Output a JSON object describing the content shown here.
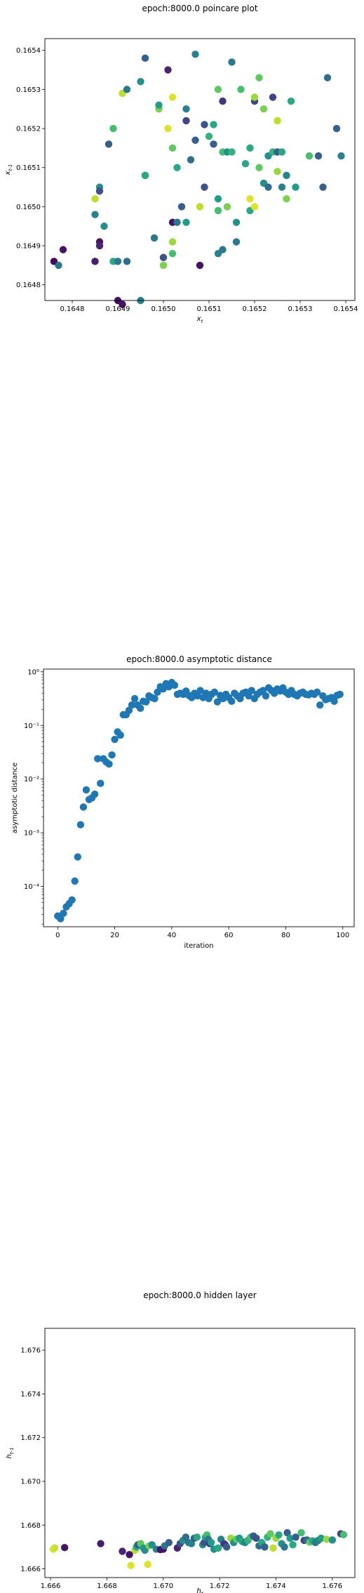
{
  "chart_data": [
    {
      "type": "scatter",
      "title": "epoch:8000.0 poincare plot",
      "xlabel": "x_t",
      "ylabel": "x_{t-1}",
      "xlim": [
        0.16474,
        0.16542
      ],
      "ylim": [
        0.16476,
        0.16543
      ],
      "xticks": [
        "0.1648",
        "0.1649",
        "0.1650",
        "0.1651",
        "0.1652",
        "0.1653",
        "0.1654"
      ],
      "yticks": [
        "0.1648",
        "0.1649",
        "0.1650",
        "0.1651",
        "0.1652",
        "0.1653",
        "0.1654"
      ],
      "colormap": "viridis",
      "points": [
        [
          0.16476,
          0.16486,
          0.02
        ],
        [
          0.16477,
          0.16485,
          0.4
        ],
        [
          0.16478,
          0.16489,
          0.05
        ],
        [
          0.16485,
          0.16486,
          0.08
        ],
        [
          0.16485,
          0.16498,
          0.45
        ],
        [
          0.16485,
          0.16502,
          0.9
        ],
        [
          0.16486,
          0.16505,
          0.5
        ],
        [
          0.16486,
          0.16504,
          0.25
        ],
        [
          0.16486,
          0.16491,
          0.05
        ],
        [
          0.16486,
          0.1649,
          0.1
        ],
        [
          0.16487,
          0.16495,
          0.5
        ],
        [
          0.16488,
          0.16516,
          0.3
        ],
        [
          0.16489,
          0.1652,
          0.7
        ],
        [
          0.16489,
          0.16486,
          0.6
        ],
        [
          0.1649,
          0.16486,
          0.4
        ],
        [
          0.1649,
          0.16476,
          0.05
        ],
        [
          0.16491,
          0.16475,
          0.05
        ],
        [
          0.16492,
          0.16486,
          0.35
        ],
        [
          0.16491,
          0.16529,
          0.9
        ],
        [
          0.16492,
          0.1653,
          0.4
        ],
        [
          0.16495,
          0.16476,
          0.45
        ],
        [
          0.16495,
          0.16532,
          0.5
        ],
        [
          0.16496,
          0.16538,
          0.3
        ],
        [
          0.16496,
          0.16508,
          0.3
        ],
        [
          0.16496,
          0.16508,
          0.6
        ],
        [
          0.16498,
          0.16492,
          0.4
        ],
        [
          0.16499,
          0.16525,
          0.8
        ],
        [
          0.16499,
          0.16526,
          0.55
        ],
        [
          0.165,
          0.16485,
          0.9
        ],
        [
          0.165,
          0.16485,
          0.8
        ],
        [
          0.165,
          0.16487,
          0.25
        ],
        [
          0.16501,
          0.1652,
          0.95
        ],
        [
          0.16501,
          0.16535,
          0.1
        ],
        [
          0.16502,
          0.16528,
          0.95
        ],
        [
          0.16502,
          0.16515,
          0.75
        ],
        [
          0.16502,
          0.16496,
          0.05
        ],
        [
          0.16502,
          0.16491,
          0.85
        ],
        [
          0.16502,
          0.16488,
          0.7
        ],
        [
          0.16503,
          0.1651,
          0.6
        ],
        [
          0.16503,
          0.16496,
          0.4
        ],
        [
          0.16504,
          0.165,
          0.3
        ],
        [
          0.16505,
          0.16496,
          0.55
        ],
        [
          0.16505,
          0.16525,
          0.45
        ],
        [
          0.16505,
          0.16522,
          0.2
        ],
        [
          0.16506,
          0.16512,
          0.35
        ],
        [
          0.16507,
          0.16539,
          0.45
        ],
        [
          0.16507,
          0.16517,
          0.3
        ],
        [
          0.16508,
          0.16485,
          0.05
        ],
        [
          0.16508,
          0.165,
          0.9
        ],
        [
          0.16509,
          0.16521,
          0.25
        ],
        [
          0.16509,
          0.16505,
          0.25
        ],
        [
          0.1651,
          0.16518,
          0.65
        ],
        [
          0.16511,
          0.16521,
          0.6
        ],
        [
          0.16511,
          0.16516,
          0.3
        ],
        [
          0.16512,
          0.16488,
          0.45
        ],
        [
          0.16512,
          0.1653,
          0.75
        ],
        [
          0.16512,
          0.16499,
          0.7
        ],
        [
          0.16512,
          0.16502,
          0.55
        ],
        [
          0.16513,
          0.16514,
          0.7
        ],
        [
          0.16513,
          0.16489,
          0.4
        ],
        [
          0.16513,
          0.16527,
          0.15
        ],
        [
          0.16514,
          0.16514,
          0.5
        ],
        [
          0.16514,
          0.165,
          0.8
        ],
        [
          0.16515,
          0.16514,
          0.65
        ],
        [
          0.16515,
          0.16537,
          0.4
        ],
        [
          0.16516,
          0.16496,
          0.5
        ],
        [
          0.16516,
          0.16491,
          0.4
        ],
        [
          0.16517,
          0.1653,
          0.7
        ],
        [
          0.16518,
          0.16511,
          0.6
        ],
        [
          0.16519,
          0.16502,
          0.95
        ],
        [
          0.16519,
          0.16499,
          0.6
        ],
        [
          0.16519,
          0.16515,
          0.6
        ],
        [
          0.1652,
          0.16527,
          0.2
        ],
        [
          0.1652,
          0.16528,
          0.85
        ],
        [
          0.1652,
          0.165,
          0.95
        ],
        [
          0.16521,
          0.1651,
          0.75
        ],
        [
          0.16521,
          0.16533,
          0.75
        ],
        [
          0.16522,
          0.16525,
          0.8
        ],
        [
          0.16522,
          0.16506,
          0.5
        ],
        [
          0.16523,
          0.16513,
          0.5
        ],
        [
          0.16523,
          0.16505,
          0.35
        ],
        [
          0.16524,
          0.16528,
          0.2
        ],
        [
          0.16524,
          0.16514,
          0.65
        ],
        [
          0.16525,
          0.16509,
          0.85
        ],
        [
          0.16525,
          0.16522,
          0.9
        ],
        [
          0.16525,
          0.16514,
          0.3
        ],
        [
          0.16526,
          0.16505,
          0.45
        ],
        [
          0.16526,
          0.16514,
          0.6
        ],
        [
          0.16527,
          0.16502,
          0.8
        ],
        [
          0.16527,
          0.16508,
          0.45
        ],
        [
          0.16528,
          0.16527,
          0.6
        ],
        [
          0.16529,
          0.16505,
          0.55
        ],
        [
          0.16532,
          0.16513,
          0.7
        ],
        [
          0.16534,
          0.16513,
          0.3
        ],
        [
          0.16535,
          0.16505,
          0.3
        ],
        [
          0.16536,
          0.16533,
          0.35
        ],
        [
          0.16538,
          0.1652,
          0.3
        ],
        [
          0.16539,
          0.16513,
          0.45
        ]
      ]
    },
    {
      "type": "scatter",
      "title": "epoch:8000.0 asymptotic distance",
      "xlabel": "iteration",
      "ylabel": "asymptotic distance",
      "xlim": [
        -5,
        104
      ],
      "yscale": "log",
      "ylim_log10": [
        -4.75,
        0.05
      ],
      "xticks": [
        "0",
        "20",
        "40",
        "60",
        "80",
        "100"
      ],
      "xtick_values": [
        0,
        20,
        40,
        60,
        80,
        100
      ],
      "yticks": [
        "10⁻⁴",
        "10⁻³",
        "10⁻²",
        "10⁻¹",
        "10⁰"
      ],
      "ytick_exponents": [
        -4,
        -3,
        -2,
        -1,
        0
      ],
      "color": "#1f77b4",
      "x": [
        0,
        1,
        2,
        3,
        4,
        5,
        6,
        7,
        8,
        9,
        10,
        11,
        12,
        13,
        14,
        15,
        16,
        17,
        18,
        19,
        20,
        21,
        22,
        23,
        24,
        25,
        26,
        27,
        28,
        29,
        30,
        31,
        32,
        33,
        34,
        35,
        36,
        37,
        38,
        39,
        40,
        41,
        42,
        43,
        44,
        45,
        46,
        47,
        48,
        49,
        50,
        51,
        52,
        53,
        54,
        55,
        56,
        57,
        58,
        59,
        60,
        61,
        62,
        63,
        64,
        65,
        66,
        67,
        68,
        69,
        70,
        71,
        72,
        73,
        74,
        75,
        76,
        77,
        78,
        79,
        80,
        81,
        82,
        83,
        84,
        85,
        86,
        87,
        88,
        89,
        90,
        91,
        92,
        93,
        94,
        95,
        96,
        97,
        98,
        99
      ],
      "log10_y": [
        -4.55,
        -4.6,
        -4.5,
        -4.38,
        -4.32,
        -4.25,
        -3.9,
        -3.45,
        -2.85,
        -2.52,
        -2.2,
        -2.38,
        -2.35,
        -2.28,
        -1.62,
        -2.08,
        -1.62,
        -1.68,
        -1.72,
        -1.55,
        -1.26,
        -1.12,
        -1.18,
        -0.8,
        -0.8,
        -0.72,
        -0.62,
        -0.5,
        -0.62,
        -0.68,
        -0.55,
        -0.56,
        -0.45,
        -0.48,
        -0.5,
        -0.38,
        -0.28,
        -0.32,
        -0.22,
        -0.28,
        -0.2,
        -0.25,
        -0.42,
        -0.4,
        -0.42,
        -0.36,
        -0.44,
        -0.48,
        -0.4,
        -0.45,
        -0.35,
        -0.48,
        -0.4,
        -0.5,
        -0.42,
        -0.38,
        -0.56,
        -0.44,
        -0.5,
        -0.42,
        -0.48,
        -0.55,
        -0.4,
        -0.45,
        -0.5,
        -0.4,
        -0.38,
        -0.45,
        -0.35,
        -0.5,
        -0.42,
        -0.38,
        -0.35,
        -0.45,
        -0.3,
        -0.35,
        -0.4,
        -0.32,
        -0.36,
        -0.3,
        -0.38,
        -0.42,
        -0.35,
        -0.42,
        -0.45,
        -0.4,
        -0.38,
        -0.42,
        -0.43,
        -0.4,
        -0.42,
        -0.38,
        -0.62,
        -0.45,
        -0.52,
        -0.5,
        -0.48,
        -0.55,
        -0.44,
        -0.42
      ]
    },
    {
      "type": "scatter",
      "title": "epoch:8000.0 hidden layer",
      "xlabel": "h_t",
      "ylabel": "h_{t-1}",
      "xlim": [
        1.6658,
        1.6768
      ],
      "ylim": [
        1.6656,
        1.677
      ],
      "xticks": [
        "1.666",
        "1.668",
        "1.670",
        "1.672",
        "1.674",
        "1.676"
      ],
      "xtick_values": [
        1.666,
        1.668,
        1.67,
        1.672,
        1.674,
        1.676
      ],
      "yticks": [
        "1.666",
        "1.668",
        "1.670",
        "1.672",
        "1.674",
        "1.676"
      ],
      "ytick_values": [
        1.666,
        1.668,
        1.67,
        1.672,
        1.674,
        1.676
      ],
      "colormap": "viridis",
      "points": [
        [
          1.6661,
          1.6669,
          0.95
        ],
        [
          1.66615,
          1.66696,
          0.92
        ],
        [
          1.6665,
          1.66697,
          0.05
        ],
        [
          1.66778,
          1.66715,
          0.08
        ],
        [
          1.66855,
          1.6668,
          0.1
        ],
        [
          1.6688,
          1.66665,
          0.05
        ],
        [
          1.66885,
          1.66615,
          0.95
        ],
        [
          1.669,
          1.66685,
          0.9
        ],
        [
          1.66905,
          1.667,
          0.6
        ],
        [
          1.6691,
          1.6671,
          0.3
        ],
        [
          1.6692,
          1.66715,
          0.75
        ],
        [
          1.6693,
          1.66695,
          0.55
        ],
        [
          1.66935,
          1.66685,
          0.5
        ],
        [
          1.66945,
          1.6662,
          0.95
        ],
        [
          1.6695,
          1.66705,
          0.8
        ],
        [
          1.6696,
          1.6671,
          0.5
        ],
        [
          1.66975,
          1.6669,
          0.45
        ],
        [
          1.6699,
          1.66688,
          0.05
        ],
        [
          1.67,
          1.6669,
          0.05
        ],
        [
          1.67005,
          1.66705,
          0.4
        ],
        [
          1.6702,
          1.6672,
          0.3
        ],
        [
          1.6705,
          1.66695,
          0.1
        ],
        [
          1.6706,
          1.66715,
          0.25
        ],
        [
          1.6707,
          1.6673,
          0.5
        ],
        [
          1.6708,
          1.66745,
          0.35
        ],
        [
          1.6709,
          1.6672,
          0.4
        ],
        [
          1.671,
          1.66715,
          0.45
        ],
        [
          1.6711,
          1.6674,
          0.3
        ],
        [
          1.6712,
          1.66745,
          0.6
        ],
        [
          1.6714,
          1.6671,
          0.5
        ],
        [
          1.67145,
          1.6672,
          0.25
        ],
        [
          1.6715,
          1.66745,
          0.55
        ],
        [
          1.67155,
          1.66755,
          0.7
        ],
        [
          1.6716,
          1.66735,
          0.4
        ],
        [
          1.67165,
          1.66715,
          0.15
        ],
        [
          1.6717,
          1.6672,
          0.55
        ],
        [
          1.6718,
          1.6669,
          0.5
        ],
        [
          1.67195,
          1.66695,
          0.6
        ],
        [
          1.67205,
          1.66735,
          0.45
        ],
        [
          1.67215,
          1.66715,
          0.2
        ],
        [
          1.6722,
          1.6671,
          0.15
        ],
        [
          1.67225,
          1.667,
          0.3
        ],
        [
          1.6724,
          1.6674,
          0.85
        ],
        [
          1.6725,
          1.6672,
          0.5
        ],
        [
          1.6726,
          1.66735,
          0.75
        ],
        [
          1.6727,
          1.6674,
          0.55
        ],
        [
          1.6728,
          1.66725,
          0.6
        ],
        [
          1.6729,
          1.6672,
          0.45
        ],
        [
          1.673,
          1.6673,
          0.65
        ],
        [
          1.6731,
          1.66745,
          0.7
        ],
        [
          1.6732,
          1.6675,
          0.3
        ],
        [
          1.6733,
          1.6674,
          0.25
        ],
        [
          1.6734,
          1.66705,
          0.35
        ],
        [
          1.6735,
          1.6672,
          0.6
        ],
        [
          1.6736,
          1.667,
          0.3
        ],
        [
          1.6737,
          1.66745,
          0.65
        ],
        [
          1.6738,
          1.6676,
          0.75
        ],
        [
          1.6739,
          1.66695,
          0.9
        ],
        [
          1.674,
          1.6674,
          0.85
        ],
        [
          1.6741,
          1.66755,
          0.6
        ],
        [
          1.6742,
          1.66715,
          0.5
        ],
        [
          1.6743,
          1.667,
          0.4
        ],
        [
          1.6744,
          1.66765,
          0.3
        ],
        [
          1.6745,
          1.6674,
          0.55
        ],
        [
          1.6746,
          1.6671,
          0.6
        ],
        [
          1.6747,
          1.66745,
          0.3
        ],
        [
          1.6749,
          1.66765,
          0.7
        ],
        [
          1.675,
          1.6673,
          0.2
        ],
        [
          1.6751,
          1.66732,
          0.35
        ],
        [
          1.6752,
          1.66722,
          0.75
        ],
        [
          1.6753,
          1.66728,
          0.6
        ],
        [
          1.6754,
          1.6672,
          0.4
        ],
        [
          1.6755,
          1.6673,
          0.45
        ],
        [
          1.6756,
          1.6674,
          0.55
        ],
        [
          1.6758,
          1.66735,
          0.85
        ],
        [
          1.676,
          1.66732,
          0.5
        ],
        [
          1.6763,
          1.6676,
          0.2
        ],
        [
          1.6764,
          1.66756,
          0.7
        ]
      ]
    }
  ]
}
